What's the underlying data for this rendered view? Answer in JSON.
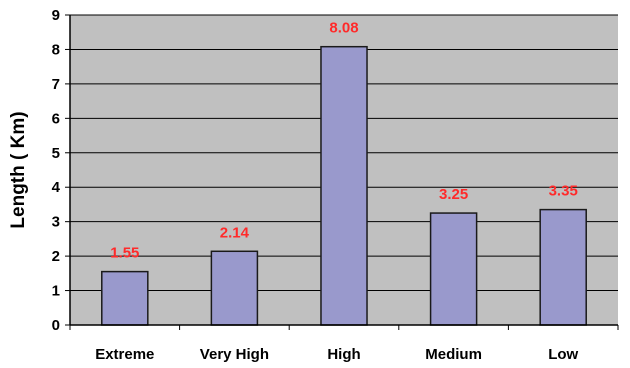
{
  "chart_data": {
    "type": "bar",
    "categories": [
      "Extreme",
      "Very High",
      "High",
      "Medium",
      "Low"
    ],
    "values": [
      1.55,
      2.14,
      8.08,
      3.25,
      3.35
    ],
    "data_labels": [
      "1.55",
      "2.14",
      "8.08",
      "3.25",
      "3.35"
    ],
    "title": "",
    "xlabel": "",
    "ylabel": "Length ( Km)",
    "ylim": [
      0,
      9
    ],
    "yticks": [
      "0",
      "1",
      "2",
      "3",
      "4",
      "5",
      "6",
      "7",
      "8",
      "9"
    ],
    "grid": true,
    "legend": "none",
    "colors": {
      "bar_fill": "#9999cc",
      "bar_stroke": "#1a1a1a",
      "plot_background": "#c0c0c0",
      "gridline": "#000000",
      "data_label": "#ff2a2a"
    }
  }
}
